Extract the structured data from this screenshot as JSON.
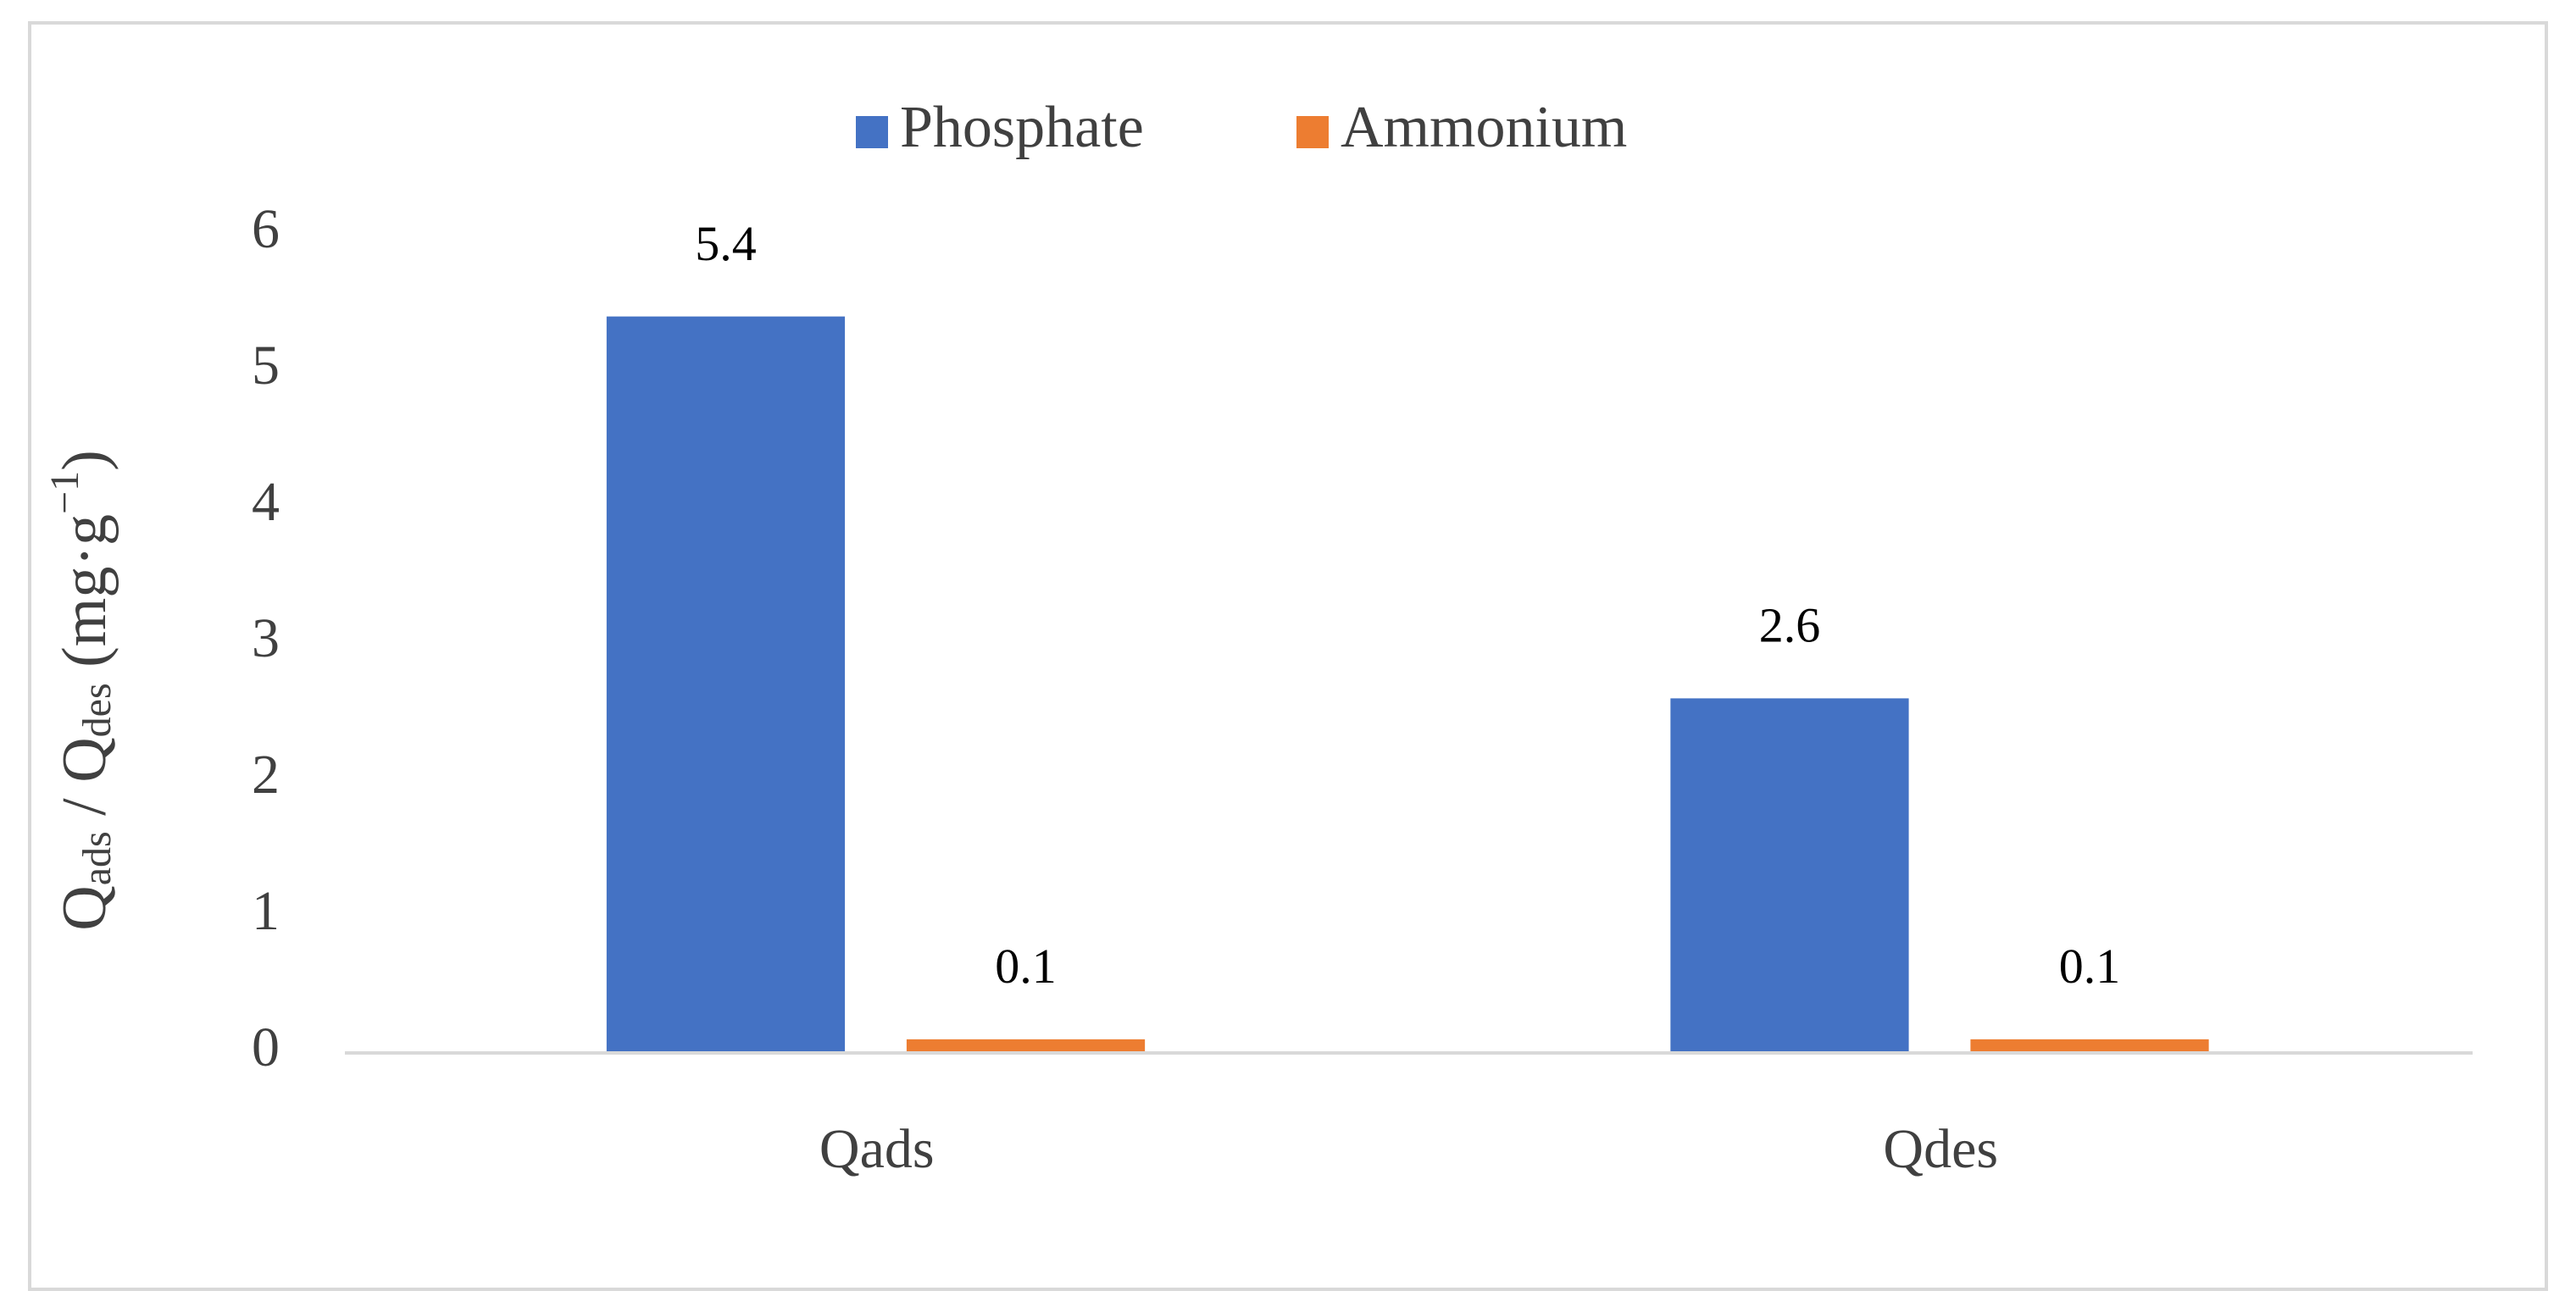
{
  "chart_data": {
    "type": "bar",
    "y_label": {
      "q1": "Q",
      "sub1": "ads",
      "mid": " / Q",
      "sub2": "des",
      "unit": " (mg·g",
      "sup": "−1",
      "end": ")"
    },
    "categories": [
      "Qads",
      "Qdes"
    ],
    "series": [
      {
        "name": "Phosphate",
        "color": "#4472c4",
        "values": [
          5.4,
          2.6
        ]
      },
      {
        "name": "Ammonium",
        "color": "#ed7d31",
        "values": [
          0.1,
          0.1
        ]
      }
    ],
    "ylim": [
      0,
      6
    ],
    "yticks": [
      0,
      1,
      2,
      3,
      4,
      5,
      6
    ],
    "grid": false,
    "legend": "top"
  }
}
